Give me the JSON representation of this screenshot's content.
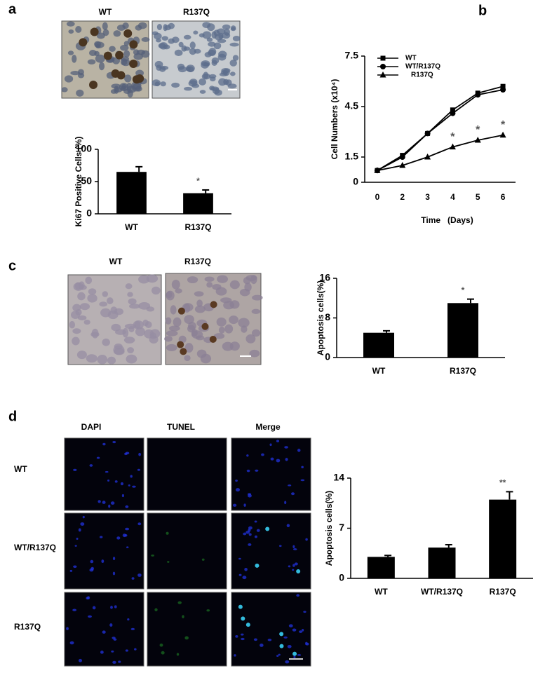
{
  "panels": [
    {
      "letter": "a",
      "image_labels": [
        "WT",
        "R137Q"
      ]
    },
    {
      "letter": "b"
    },
    {
      "letter": "c",
      "image_labels": [
        "WT",
        "R137Q"
      ]
    },
    {
      "letter": "d",
      "column_labels": [
        "DAPI",
        "TUNEL",
        "Merge"
      ],
      "row_labels": [
        "WT",
        "WT/R137Q",
        "R137Q"
      ]
    }
  ],
  "chart_data": [
    {
      "type": "bar",
      "ylabel": "Ki67 Positive Cells (%)",
      "categories": [
        "WT",
        "R137Q"
      ],
      "values": [
        65,
        32
      ],
      "errors": [
        8,
        5
      ],
      "annotations": [
        null,
        "*"
      ],
      "color": "#000000",
      "ylim": [
        0,
        100
      ],
      "yticks": [
        0,
        50,
        100
      ]
    },
    {
      "type": "line",
      "ylabel": "Cell Numbers (x10⁴)",
      "xlabel": "Time   (Days)",
      "categories": [
        "0",
        "2",
        "3",
        "4",
        "5",
        "6"
      ],
      "series": [
        {
          "name": "WT",
          "color": "#000000",
          "marker": "square",
          "values": [
            0.7,
            1.6,
            2.9,
            4.3,
            5.3,
            5.7
          ]
        },
        {
          "name": "WT/R137Q",
          "color": "#000000",
          "marker": "circle",
          "values": [
            0.7,
            1.5,
            2.9,
            4.1,
            5.2,
            5.5
          ]
        },
        {
          "name": "R137Q",
          "color": "#000000",
          "marker": "triangle",
          "values": [
            0.7,
            1.0,
            1.5,
            2.1,
            2.5,
            2.8
          ]
        }
      ],
      "annotations": [
        null,
        null,
        null,
        "*",
        "*",
        "*"
      ],
      "legend": "top-left",
      "ylim": [
        0,
        7.5
      ],
      "yticks": [
        0,
        1.5,
        4.5,
        7.5
      ]
    },
    {
      "type": "bar",
      "ylabel": "Apoptosis cells(%)",
      "categories": [
        "WT",
        "R137Q"
      ],
      "values": [
        5,
        11
      ],
      "errors": [
        0.4,
        0.8
      ],
      "annotations": [
        null,
        "*"
      ],
      "color": "#000000",
      "ylim": [
        0,
        16
      ],
      "yticks": [
        0,
        8,
        16
      ]
    },
    {
      "type": "bar",
      "ylabel": "Apoptosis cells(%)",
      "categories": [
        "WT",
        "WT/R137Q",
        "R137Q"
      ],
      "values": [
        3,
        4.3,
        11
      ],
      "errors": [
        0.2,
        0.4,
        1.1
      ],
      "annotations": [
        null,
        null,
        "**"
      ],
      "color": "#000000",
      "ylim": [
        0,
        14
      ],
      "yticks": [
        0,
        7,
        14
      ]
    }
  ]
}
